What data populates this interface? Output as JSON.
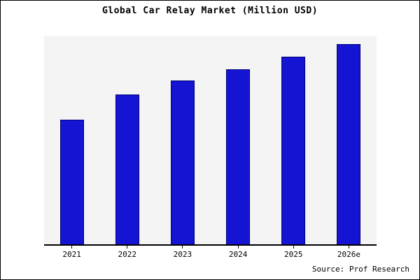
{
  "title": "Global Car Relay Market (Million USD)",
  "source": "Source: Prof Research",
  "colors": {
    "bar_fill": "#1414d2",
    "bar_border": "#00007a",
    "plot_background": "#f4f4f4",
    "axis": "#000000",
    "page_background": "#ffffff"
  },
  "chart_data": {
    "type": "bar",
    "title": "Global Car Relay Market (Million USD)",
    "categories": [
      "2021",
      "2022",
      "2023",
      "2024",
      "2025",
      "2026e"
    ],
    "values": [
      100,
      120,
      131,
      140,
      150,
      160
    ],
    "xlabel": "",
    "ylabel": "",
    "ylim": [
      0,
      167
    ],
    "grid": false,
    "legend": false,
    "annotation": "Source: Prof Research"
  }
}
